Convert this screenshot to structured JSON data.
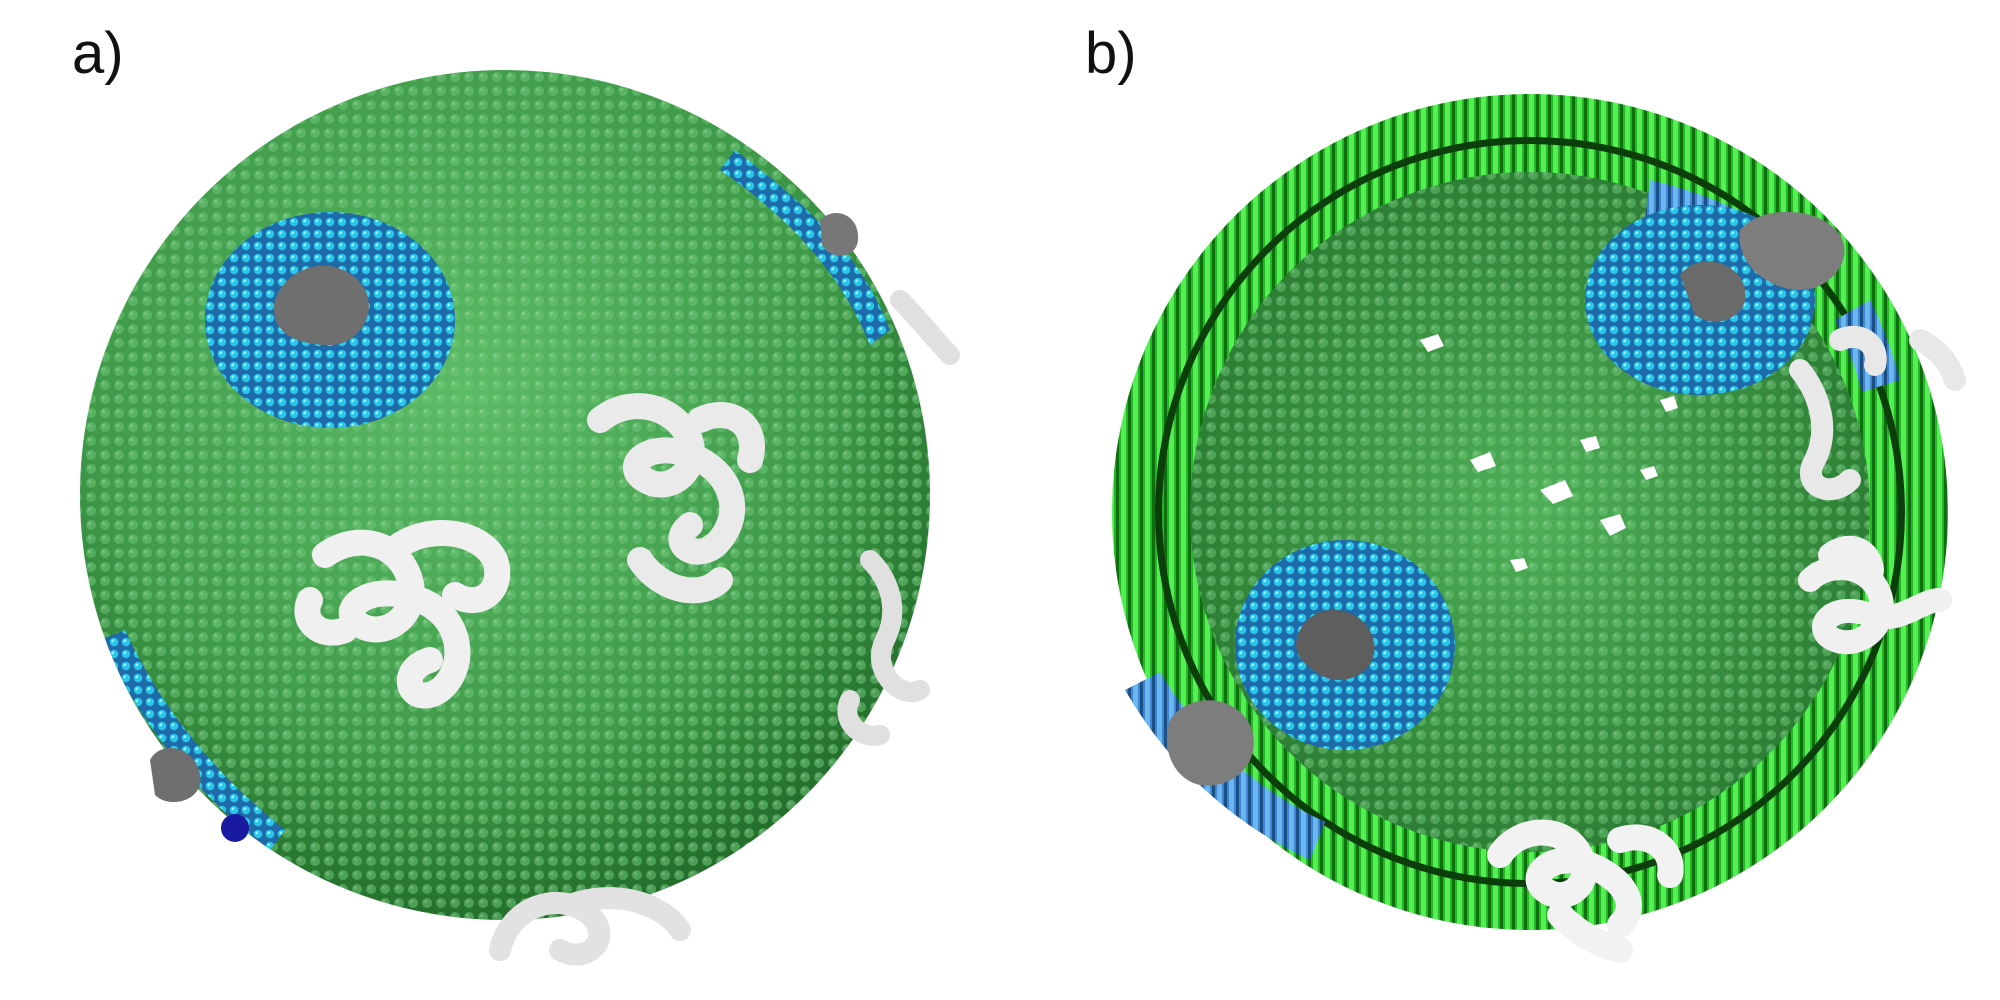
{
  "panels": [
    {
      "label": "a)"
    },
    {
      "label": "b)"
    }
  ],
  "colors": {
    "lipid_green": "#4aa556",
    "lipid_green_dark": "#2f7a36",
    "lipid_green_light": "#7fd08a",
    "bilayer_bright_green": "#33dd33",
    "domain_cyan": "#27c1e6",
    "domain_blue": "#2a6fb5",
    "protein_gray": "#7d7d7d",
    "protein_white": "#eeeeee",
    "accent_navy": "#1a1aa0"
  }
}
